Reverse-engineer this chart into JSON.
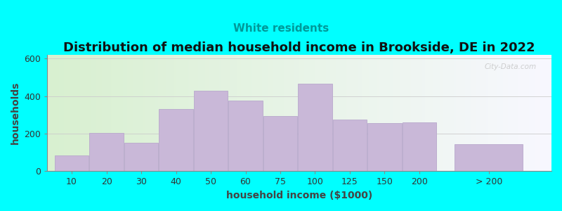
{
  "title": "Distribution of median household income in Brookside, DE in 2022",
  "subtitle": "White residents",
  "xlabel": "household income ($1000)",
  "ylabel": "households",
  "background_color": "#00FFFF",
  "bar_color": "#c9b8d8",
  "bar_edge_color": "#b8a8cc",
  "categories": [
    "10",
    "20",
    "30",
    "40",
    "50",
    "60",
    "75",
    "100",
    "125",
    "150",
    "200",
    "> 200"
  ],
  "values": [
    85,
    205,
    150,
    330,
    430,
    375,
    295,
    465,
    275,
    255,
    260,
    145
  ],
  "bar_positions": [
    1,
    2,
    3,
    4,
    5,
    6,
    7,
    8,
    9,
    10,
    11,
    13
  ],
  "bar_widths": [
    1,
    1,
    1,
    1,
    1,
    1,
    1,
    1,
    1,
    1,
    1,
    2
  ],
  "ylim": [
    0,
    620
  ],
  "yticks": [
    0,
    200,
    400,
    600
  ],
  "watermark": "City-Data.com",
  "title_fontsize": 13,
  "subtitle_fontsize": 11,
  "axis_label_fontsize": 10,
  "tick_fontsize": 9,
  "xlim_left": 0.3,
  "xlim_right": 14.8
}
